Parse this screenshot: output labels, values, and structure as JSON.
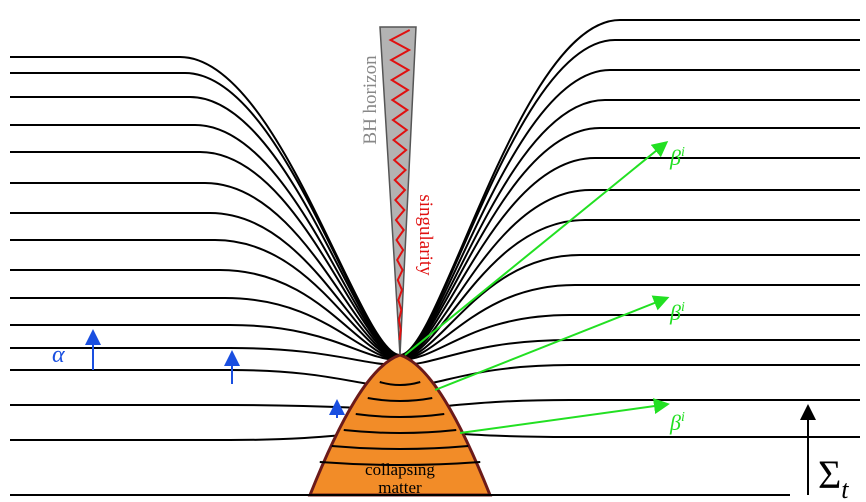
{
  "labels": {
    "horizon": "BH horizon",
    "singularity": "singularity",
    "lapse": "α",
    "shift": [
      {
        "base": "β",
        "sup": "i"
      },
      {
        "base": "β",
        "sup": "i"
      },
      {
        "base": "β",
        "sup": "i"
      }
    ],
    "matter": [
      "collapsing",
      "matter"
    ],
    "time": {
      "base": "Σ",
      "sub": "t"
    }
  }
}
